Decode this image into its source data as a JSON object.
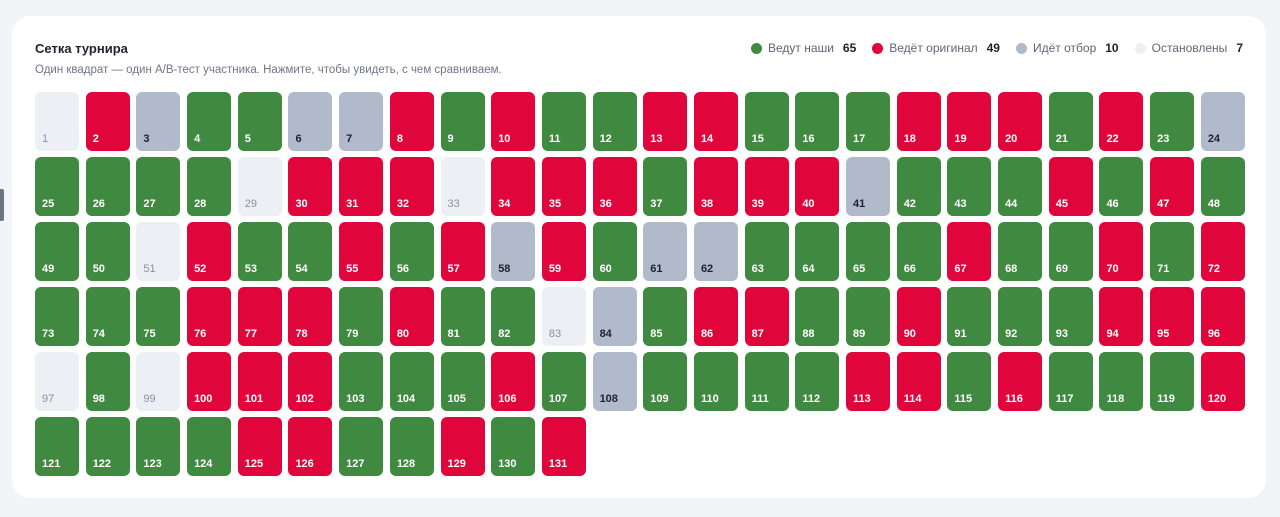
{
  "panel": {
    "title": "Сетка турнира",
    "subtitle": "Один квадрат — один A/B-тест участника. Нажмите, чтобы увидеть, с чем сравниваем."
  },
  "legend": [
    {
      "status": "winning",
      "label": "Ведут наши",
      "count": "65",
      "color": "#3f8940"
    },
    {
      "status": "losing",
      "label": "Ведёт оригинал",
      "count": "49",
      "color": "#e0063c"
    },
    {
      "status": "selection",
      "label": "Идёт отбор",
      "count": "10",
      "color": "#b0bacb"
    },
    {
      "status": "stopped",
      "label": "Остановлены",
      "count": "7",
      "color": "#eceff4"
    }
  ],
  "tiles": [
    "S",
    "L",
    "Q",
    "W",
    "W",
    "Q",
    "Q",
    "L",
    "W",
    "L",
    "W",
    "W",
    "L",
    "L",
    "W",
    "W",
    "W",
    "L",
    "L",
    "L",
    "W",
    "L",
    "W",
    "Q",
    "W",
    "W",
    "W",
    "W",
    "S",
    "L",
    "L",
    "L",
    "S",
    "L",
    "L",
    "L",
    "W",
    "L",
    "L",
    "L",
    "Q",
    "W",
    "W",
    "W",
    "L",
    "W",
    "L",
    "W",
    "W",
    "W",
    "S",
    "L",
    "W",
    "W",
    "L",
    "W",
    "L",
    "Q",
    "L",
    "W",
    "Q",
    "Q",
    "W",
    "W",
    "W",
    "W",
    "L",
    "W",
    "W",
    "L",
    "W",
    "L",
    "W",
    "W",
    "W",
    "L",
    "L",
    "L",
    "W",
    "L",
    "W",
    "W",
    "S",
    "Q",
    "W",
    "L",
    "L",
    "W",
    "W",
    "L",
    "W",
    "W",
    "W",
    "L",
    "L",
    "L",
    "S",
    "W",
    "S",
    "L",
    "L",
    "L",
    "W",
    "W",
    "W",
    "L",
    "W",
    "Q",
    "W",
    "W",
    "W",
    "W",
    "L",
    "L",
    "W",
    "L",
    "W",
    "W",
    "W",
    "L",
    "W",
    "W",
    "W",
    "W",
    "L",
    "L",
    "W",
    "W",
    "L",
    "W",
    "L"
  ]
}
